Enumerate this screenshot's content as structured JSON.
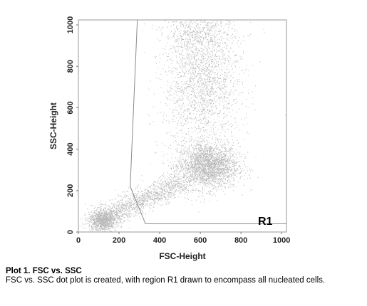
{
  "chart_data": {
    "type": "scatter",
    "title": "",
    "xlabel": "FSC-Height",
    "ylabel": "SSC-Height",
    "xlim": [
      0,
      1024
    ],
    "ylim": [
      0,
      1024
    ],
    "xticks": [
      "0",
      "200",
      "400",
      "600",
      "800",
      "1000"
    ],
    "yticks": [
      "0",
      "200",
      "400",
      "600",
      "800",
      "1000"
    ],
    "grid": false,
    "point_color": "#333333",
    "region": {
      "name": "R1",
      "vertices": [
        [
          290,
          1024
        ],
        [
          1024,
          1024
        ],
        [
          1024,
          40
        ],
        [
          330,
          40
        ],
        [
          255,
          220
        ]
      ]
    },
    "populations": [
      {
        "name": "dense cluster",
        "cx": 635,
        "cy": 320,
        "sx": 75,
        "sy": 55,
        "n": 2600
      },
      {
        "name": "upper band",
        "cx": 610,
        "cy": 720,
        "sx": 95,
        "sy": 170,
        "n": 2100
      },
      {
        "name": "upper tail",
        "cx": 590,
        "cy": 960,
        "sx": 90,
        "sy": 60,
        "n": 500
      },
      {
        "name": "low cluster",
        "cx": 115,
        "cy": 55,
        "sx": 35,
        "sy": 25,
        "n": 900
      },
      {
        "name": "debris streak",
        "cx": 300,
        "cy": 150,
        "sx": 150,
        "sy": 60,
        "n": 1500
      }
    ]
  },
  "caption": {
    "title": "Plot 1. FSC vs. SSC",
    "text": "FSC vs. SSC dot plot is created, with region R1 drawn to encompass all nucleated cells."
  }
}
